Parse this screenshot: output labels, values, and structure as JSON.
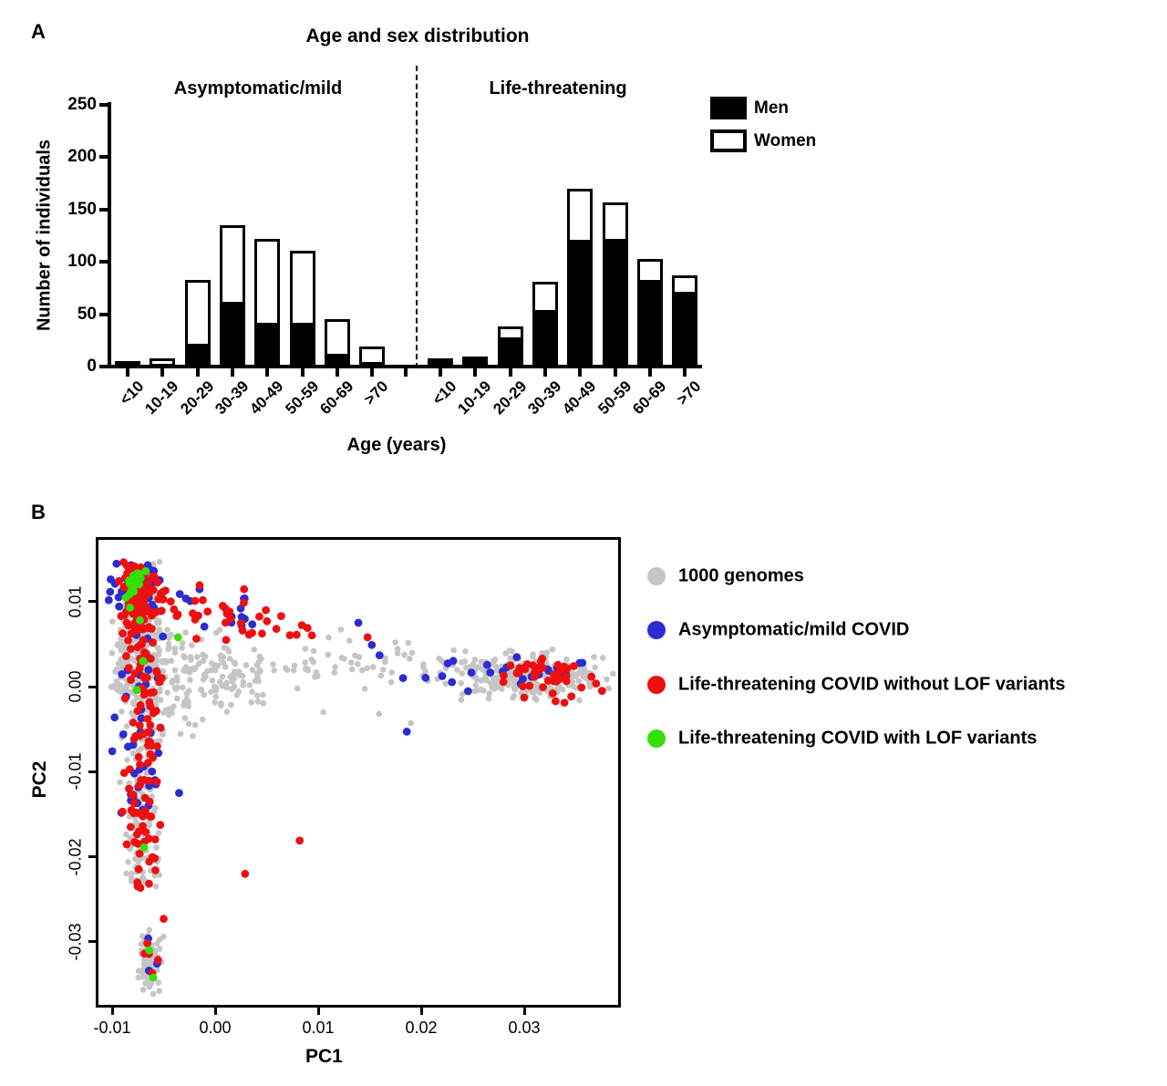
{
  "chart_data": [
    {
      "type": "bar",
      "panel": "A",
      "title": "Age and sex distribution",
      "ylabel": "Number of individuals",
      "xlabel": "Age (years)",
      "ylim": [
        0,
        250
      ],
      "yticks": [
        0,
        50,
        100,
        150,
        200,
        250
      ],
      "ytick_labels": [
        "0",
        "50",
        "100",
        "150",
        "200",
        "250"
      ],
      "categories": [
        "<10",
        "10-19",
        "20-29",
        "30-39",
        "40-49",
        "50-59",
        "60-69",
        ">70"
      ],
      "stacking": "Men bottom (black), Women top (white)",
      "groups": [
        {
          "label": "Asymptomatic/mild",
          "series": [
            {
              "name": "Men",
              "values": [
                4,
                3,
                22,
                62,
                42,
                42,
                12,
                4
              ]
            },
            {
              "name": "Women",
              "values": [
                1,
                5,
                61,
                73,
                80,
                69,
                33,
                15
              ]
            }
          ]
        },
        {
          "label": "Life-threatening",
          "series": [
            {
              "name": "Men",
              "values": [
                5,
                9,
                28,
                54,
                121,
                122,
                83,
                71
              ]
            },
            {
              "name": "Women",
              "values": [
                3,
                1,
                10,
                27,
                49,
                35,
                20,
                16
              ]
            }
          ]
        }
      ],
      "legend": [
        {
          "label": "Men",
          "fill": "#000000"
        },
        {
          "label": "Women",
          "fill": "#ffffff"
        }
      ]
    },
    {
      "type": "scatter",
      "panel": "B",
      "xlabel": "PC1",
      "ylabel": "PC2",
      "xlim": [
        -0.0113,
        0.0391
      ],
      "ylim": [
        -0.0374,
        0.0173
      ],
      "xticks": [
        -0.01,
        0.0,
        0.01,
        0.02,
        0.03
      ],
      "xtick_labels": [
        "-0.01",
        "0.00",
        "0.01",
        "0.02",
        "0.03"
      ],
      "yticks": [
        0.01,
        0.0,
        -0.01,
        -0.02,
        -0.03
      ],
      "ytick_labels": [
        "0.01",
        "0.00",
        "-0.01",
        "-0.02",
        "-0.03"
      ],
      "legend": [
        {
          "key": "genomes",
          "label": "1000 genomes",
          "color": "#c5c5c5"
        },
        {
          "key": "mild",
          "label": "Asymptomatic/mild COVID",
          "color": "#2c2cd2"
        },
        {
          "key": "severe",
          "label": "Life-threatening COVID without LOF variants",
          "color": "#ee1010"
        },
        {
          "key": "lof",
          "label": "Life-threatening COVID with LOF variants",
          "color": "#35e008"
        }
      ],
      "seed": 42,
      "clusters": [
        {
          "s": "genomes",
          "n": 340,
          "x": {
            "t": "n",
            "m": -0.0076,
            "sd": 0.0011,
            "min": -0.0102,
            "max": -0.0045
          },
          "y": {
            "t": "n",
            "m": 0.0055,
            "sd": 0.005,
            "min": -0.006,
            "max": 0.0147
          }
        },
        {
          "s": "genomes",
          "n": 130,
          "x": {
            "t": "n",
            "m": -0.0072,
            "sd": 0.0009,
            "min": -0.0095,
            "max": -0.005
          },
          "y": {
            "t": "u",
            "min": -0.0238,
            "max": -0.005
          }
        },
        {
          "s": "genomes",
          "n": 85,
          "x": {
            "t": "u",
            "min": -0.0063,
            "max": -0.0025
          },
          "y": {
            "t": "n",
            "m": 0.0002,
            "sd": 0.0036,
            "min": -0.008,
            "max": 0.008
          }
        },
        {
          "s": "genomes",
          "n": 55,
          "x": {
            "t": "u",
            "min": -0.0025,
            "max": 0.0012
          },
          "y": {
            "t": "n",
            "m": 0.001,
            "sd": 0.0027,
            "min": -0.006,
            "max": 0.007
          }
        },
        {
          "s": "genomes",
          "n": 40,
          "x": {
            "t": "u",
            "min": 0.0012,
            "max": 0.0048
          },
          "y": {
            "t": "n",
            "m": 0.0015,
            "sd": 0.0018
          }
        },
        {
          "s": "genomes",
          "n": 55,
          "x": {
            "t": "u",
            "min": 0.0048,
            "max": 0.022
          },
          "y": {
            "t": "n",
            "m": 0.0026,
            "sd": 0.0013
          }
        },
        {
          "s": "genomes",
          "n": 280,
          "x": {
            "t": "n",
            "m": 0.0302,
            "sd": 0.0038,
            "min": 0.021,
            "max": 0.0388
          },
          "y": {
            "t": "n",
            "m": 0.0013,
            "sd": 0.0013,
            "min": -0.002,
            "max": 0.005
          }
        },
        {
          "s": "genomes",
          "n": 90,
          "x": {
            "t": "n",
            "m": -0.0063,
            "sd": 0.00055,
            "min": -0.008,
            "max": -0.0045
          },
          "y": {
            "t": "n",
            "m": -0.0325,
            "sd": 0.0017,
            "min": -0.0363,
            "max": -0.0285
          }
        },
        {
          "s": "mild",
          "n": 55,
          "x": {
            "t": "n",
            "m": -0.0079,
            "sd": 0.0013,
            "min": -0.0105,
            "max": -0.005
          },
          "y": {
            "t": "n",
            "m": 0.0116,
            "sd": 0.0018,
            "min": 0.008,
            "max": 0.015
          }
        },
        {
          "s": "mild",
          "n": 40,
          "x": {
            "t": "n",
            "m": -0.0073,
            "sd": 0.0013,
            "min": -0.01,
            "max": -0.0045
          },
          "y": {
            "t": "u",
            "min": -0.016,
            "max": 0.008
          }
        },
        {
          "s": "mild",
          "n": 20,
          "x": {
            "t": "u",
            "min": -0.006,
            "max": 0.004
          },
          "y": {
            "t": "n",
            "m": 0.0095,
            "sd": 0.002
          }
        },
        {
          "s": "mild",
          "n": 28,
          "x": {
            "t": "n",
            "m": 0.0285,
            "sd": 0.0048,
            "min": 0.013,
            "max": 0.037
          },
          "y": {
            "t": "n",
            "m": 0.0018,
            "sd": 0.0013
          }
        },
        {
          "s": "mild",
          "n": 3,
          "x": {
            "t": "n",
            "m": -0.0062,
            "sd": 0.0005
          },
          "y": {
            "t": "n",
            "m": -0.0307,
            "sd": 0.0013
          }
        },
        {
          "s": "severe",
          "n": 85,
          "x": {
            "t": "n",
            "m": -0.0077,
            "sd": 0.001,
            "min": -0.01,
            "max": -0.0052
          },
          "y": {
            "t": "n",
            "m": 0.0104,
            "sd": 0.0022,
            "min": 0.006,
            "max": 0.0148
          }
        },
        {
          "s": "severe",
          "n": 115,
          "x": {
            "t": "n",
            "m": -0.0071,
            "sd": 0.0009,
            "min": -0.0095,
            "max": -0.0048
          },
          "y": {
            "t": "u",
            "min": -0.0238,
            "max": 0.0075
          }
        },
        {
          "s": "severe",
          "n": 40,
          "x": {
            "t": "u",
            "min": -0.0055,
            "max": 0.0095
          },
          "y": {
            "t": "lin",
            "a": 0.0102,
            "b": -0.25,
            "x0": -0.0055,
            "sd": 0.0014
          }
        },
        {
          "s": "severe",
          "n": 42,
          "x": {
            "t": "n",
            "m": 0.0325,
            "sd": 0.0026,
            "min": 0.0262,
            "max": 0.0378
          },
          "y": {
            "t": "n",
            "m": 0.0011,
            "sd": 0.0012
          }
        },
        {
          "s": "severe",
          "n": 5,
          "x": {
            "t": "n",
            "m": -0.006,
            "sd": 0.0007
          },
          "y": {
            "t": "n",
            "m": -0.031,
            "sd": 0.0018
          }
        },
        {
          "s": "lof",
          "n": 20,
          "x": {
            "t": "n",
            "m": -0.0078,
            "sd": 0.0007,
            "min": -0.0095,
            "max": -0.0062
          },
          "y": {
            "t": "n",
            "m": 0.0113,
            "sd": 0.0013,
            "min": 0.009,
            "max": 0.0142
          }
        }
      ],
      "extra_points": [
        {
          "s": "severe",
          "x": 0.0082,
          "y": -0.0181
        },
        {
          "s": "severe",
          "x": 0.0029,
          "y": -0.022
        },
        {
          "s": "severe",
          "x": -0.005,
          "y": -0.0273
        },
        {
          "s": "severe",
          "x": 0.0148,
          "y": 0.0058
        },
        {
          "s": "mild",
          "x": 0.0186,
          "y": -0.0053
        },
        {
          "s": "mild",
          "x": 0.0139,
          "y": 0.0075
        },
        {
          "s": "mild",
          "x": 0.0152,
          "y": 0.0049
        },
        {
          "s": "mild",
          "x": -0.0035,
          "y": -0.0125
        },
        {
          "s": "genomes",
          "x": 0.0159,
          "y": -0.0032
        },
        {
          "s": "genomes",
          "x": 0.019,
          "y": -0.0043
        },
        {
          "s": "genomes",
          "x": 0.0105,
          "y": -0.003
        },
        {
          "s": "genomes",
          "x": 0.0122,
          "y": 0.0067
        },
        {
          "s": "lof",
          "x": -0.0073,
          "y": 0.0078
        },
        {
          "s": "lof",
          "x": -0.007,
          "y": 0.003
        },
        {
          "s": "lof",
          "x": -0.0076,
          "y": -0.0004
        },
        {
          "s": "lof",
          "x": -0.0069,
          "y": -0.0189
        },
        {
          "s": "lof",
          "x": -0.0064,
          "y": -0.031
        },
        {
          "s": "lof",
          "x": -0.006,
          "y": -0.0342
        },
        {
          "s": "lof",
          "x": -0.0036,
          "y": 0.0058
        }
      ]
    }
  ]
}
